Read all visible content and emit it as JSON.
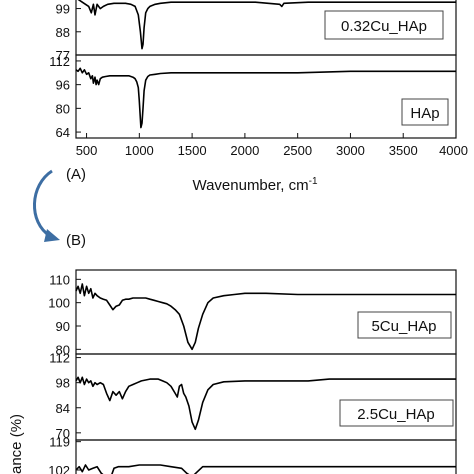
{
  "chart_data": [
    {
      "panel": "A",
      "type": "line",
      "xlabel": "Wavenumber, cm",
      "xlabel_sup": "-1",
      "xlim": [
        400,
        4000
      ],
      "xticks": [
        "500",
        "1000",
        "1500",
        "2000",
        "2500",
        "3000",
        "3500",
        "4000"
      ],
      "subplots": [
        {
          "legend": "0.32Cu_HAp",
          "ylim": [
            77,
            104
          ],
          "yticks": [
            "77",
            "88",
            "99"
          ],
          "series": [
            {
              "x": [
                400,
                430,
                460,
                490,
                520,
                545,
                565,
                580,
                600,
                630,
                660,
                700,
                760,
                820,
                870,
                920,
                960,
                990,
                1010,
                1025,
                1035,
                1045,
                1060,
                1080,
                1100,
                1150,
                1200,
                1300,
                1500,
                1800,
                2100,
                2330,
                2350,
                2370,
                2600,
                3000,
                3500,
                4000
              ],
              "y": [
                104,
                103,
                102,
                101,
                100,
                97,
                101,
                96,
                101,
                99,
                100,
                101,
                101.5,
                101.5,
                101.5,
                101,
                100,
                96,
                88,
                80,
                82,
                90,
                97,
                99,
                100,
                101,
                101.5,
                102,
                102,
                102,
                102,
                101,
                100,
                101.5,
                102,
                102,
                102,
                102
              ]
            }
          ]
        },
        {
          "legend": "HAp",
          "ylim": [
            60,
            116
          ],
          "yticks": [
            "64",
            "80",
            "96",
            "112"
          ],
          "series": [
            {
              "x": [
                400,
                420,
                440,
                460,
                480,
                500,
                520,
                540,
                555,
                565,
                580,
                590,
                600,
                615,
                630,
                650,
                680,
                720,
                760,
                800,
                850,
                900,
                940,
                960,
                975,
                990,
                1000,
                1015,
                1025,
                1035,
                1045,
                1060,
                1080,
                1100,
                1150,
                1200,
                1300,
                1500,
                2000,
                2500,
                3000,
                3500,
                4000
              ],
              "y": [
                106,
                105,
                107,
                104,
                106,
                103,
                104,
                100,
                102,
                97,
                101,
                96,
                99,
                96,
                100,
                101,
                101.5,
                102,
                102,
                102,
                102,
                102,
                101,
                100,
                98,
                94,
                85,
                67,
                70,
                80,
                92,
                99,
                101.5,
                102.5,
                103,
                103.5,
                104,
                104,
                104,
                104,
                105,
                105,
                105
              ]
            }
          ]
        }
      ]
    },
    {
      "panel": "B",
      "type": "line",
      "xlim": [
        400,
        4000
      ],
      "subplots": [
        {
          "legend": "5Cu_HAp",
          "ylim": [
            78,
            114
          ],
          "yticks": [
            "80",
            "90",
            "100",
            "110"
          ],
          "series": [
            {
              "x": [
                400,
                420,
                440,
                460,
                480,
                500,
                520,
                540,
                560,
                580,
                600,
                630,
                660,
                690,
                720,
                750,
                780,
                810,
                840,
                870,
                900,
                940,
                980,
                1020,
                1060,
                1100,
                1140,
                1180,
                1220,
                1260,
                1300,
                1340,
                1380,
                1420,
                1460,
                1500,
                1530,
                1560,
                1600,
                1650,
                1700,
                1800,
                1900,
                2000,
                2200,
                2500,
                3000,
                3500,
                4000
              ],
              "y": [
                105,
                107,
                104,
                108,
                103,
                107,
                104,
                106,
                102,
                104,
                103,
                102,
                101.5,
                101,
                99,
                97,
                98.5,
                99,
                101,
                101.5,
                101.5,
                102,
                102,
                102,
                102,
                101.5,
                101,
                100.5,
                100,
                99.5,
                98.5,
                97,
                95,
                90,
                83,
                80,
                83,
                89,
                95,
                100,
                102,
                103,
                103.5,
                104,
                104,
                103.5,
                103.5,
                103.5,
                103.5
              ]
            }
          ]
        },
        {
          "legend": "2.5Cu_HAp",
          "ylim": [
            66,
            114
          ],
          "yticks": [
            "70",
            "84",
            "98",
            "112"
          ],
          "series": [
            {
              "x": [
                400,
                420,
                440,
                460,
                480,
                500,
                520,
                540,
                560,
                580,
                600,
                630,
                660,
                690,
                720,
                750,
                780,
                810,
                840,
                870,
                900,
                940,
                980,
                1020,
                1060,
                1100,
                1140,
                1180,
                1220,
                1260,
                1300,
                1340,
                1360,
                1380,
                1400,
                1420,
                1440,
                1470,
                1500,
                1530,
                1560,
                1600,
                1650,
                1700,
                1800,
                2000,
                2300,
                2600,
                2800,
                3000,
                3500,
                4000
              ],
              "y": [
                99,
                101,
                98,
                101,
                97,
                100,
                98,
                99,
                96,
                98,
                97,
                98,
                97,
                92,
                88,
                93,
                91,
                93,
                89,
                93,
                96,
                97,
                98,
                99,
                99.5,
                100,
                100,
                100,
                99,
                98,
                96,
                92,
                90,
                96,
                97,
                92,
                90,
                85,
                76,
                72,
                77,
                87,
                94,
                97,
                98.5,
                99,
                99,
                99,
                100,
                100,
                100,
                100
              ]
            }
          ]
        },
        {
          "legend": "",
          "ylim": [
            96,
            120
          ],
          "yticks": [
            "102",
            "119"
          ],
          "series": [
            {
              "x": [
                400,
                430,
                460,
                490,
                520,
                560,
                600,
                640,
                680,
                720,
                760,
                800,
                850,
                900,
                1000,
                1100,
                1200,
                1300,
                1400,
                1450,
                1500,
                1550,
                1600,
                1700,
                2000,
                2500,
                3000,
                3500,
                4000
              ],
              "y": [
                102,
                104,
                101,
                105,
                102,
                103,
                104,
                100,
                98,
                96,
                103,
                104,
                104,
                104,
                105,
                105,
                105,
                104,
                103,
                100,
                98,
                101,
                104,
                104,
                104,
                104,
                104,
                104,
                104
              ]
            }
          ]
        }
      ]
    }
  ],
  "axis_label_b_fragment": "ance (%)",
  "panel_labels": {
    "a": "(A)",
    "b": "(B)"
  },
  "colors": {
    "line": "#000000",
    "arrow": "#3d6ea3"
  }
}
